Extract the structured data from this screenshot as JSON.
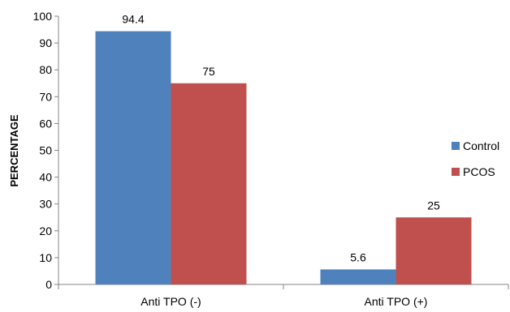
{
  "chart_data": {
    "type": "bar",
    "title": "",
    "xlabel": "",
    "ylabel": "PERCENTAGE",
    "categories": [
      "Anti TPO (-)",
      "Anti TPO (+)"
    ],
    "series": [
      {
        "name": "Control",
        "values": [
          94.4,
          5.6
        ],
        "color": "#4F81BD"
      },
      {
        "name": "PCOS",
        "values": [
          75,
          25
        ],
        "color": "#C0504D"
      }
    ],
    "data_labels": [
      [
        "94.4",
        "5.6"
      ],
      [
        "75",
        "25"
      ]
    ],
    "ylim": [
      0,
      100
    ],
    "yticks": [
      0,
      10,
      20,
      30,
      40,
      50,
      60,
      70,
      80,
      90,
      100
    ],
    "grid": false,
    "legend_position": "right"
  }
}
